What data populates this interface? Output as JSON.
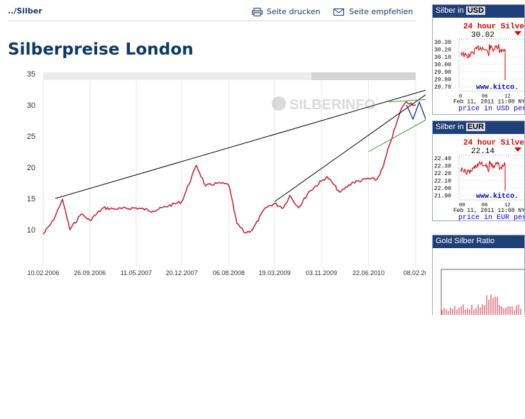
{
  "breadcrumb": "../Silber",
  "toolbar": {
    "print_label": "Seite drucken",
    "recommend_label": "Seite empfehlen"
  },
  "page_title": "Silberpreise London",
  "watermark": "SILBERINFO",
  "chart_data": {
    "type": "line",
    "title": "",
    "xlabel": "",
    "ylabel": "",
    "ylim": [
      5,
      35
    ],
    "yticks": [
      10,
      15,
      20,
      25,
      30,
      35
    ],
    "xtick_labels": [
      "10.02.2006",
      "26.09.2006",
      "11.05.2007",
      "20.12.2007",
      "06.08.2008",
      "19.03.2009",
      "03.11.2009",
      "22.06.2010",
      "08.02.20"
    ],
    "series": [
      {
        "color": "#c8283c",
        "x": [
          "10.02.2006",
          "01.04.2006",
          "15.05.2006",
          "20.06.2006",
          "15.08.2006",
          "26.09.2006",
          "01.12.2006",
          "01.02.2007",
          "11.05.2007",
          "01.08.2007",
          "15.10.2007",
          "20.12.2007",
          "01.03.2008",
          "15.04.2008",
          "15.06.2008",
          "06.08.2008",
          "15.09.2008",
          "25.10.2008",
          "01.12.2008",
          "01.02.2009",
          "19.03.2009",
          "01.05.2009",
          "01.06.2009",
          "15.07.2009",
          "01.09.2009",
          "03.11.2009",
          "01.12.2009",
          "01.02.2010",
          "01.04.2010",
          "22.06.2010",
          "01.08.2010",
          "01.09.2010",
          "01.10.2010",
          "01.11.2010",
          "01.12.2010",
          "25.12.2010",
          "08.02.2011"
        ],
        "values": [
          9.3,
          11.5,
          14.9,
          10.0,
          12.5,
          11.5,
          13.5,
          13.3,
          13.5,
          13.0,
          13.8,
          14.5,
          20.3,
          17.0,
          17.5,
          17.2,
          11.0,
          9.5,
          10.0,
          13.5,
          14.2,
          13.5,
          15.5,
          13.5,
          16.0,
          17.8,
          18.5,
          16.0,
          17.5,
          18.2,
          18.0,
          20.0,
          23.5,
          26.5,
          29.5,
          30.5,
          30.0
        ]
      }
    ],
    "trendlines": [
      {
        "x": [
          "10.04.2006",
          "08.02.2011"
        ],
        "values": [
          15.0,
          33.0
        ],
        "color": "#000000"
      },
      {
        "x": [
          "19.03.2009",
          "08.02.2011"
        ],
        "values": [
          14.5,
          33.5
        ],
        "color": "#000000"
      },
      {
        "x": [
          "22.06.2010",
          "08.02.2011"
        ],
        "values": [
          22.5,
          29.0
        ],
        "color": "#2aa02a"
      },
      {
        "x": [
          "01.10.2010",
          "08.02.2011"
        ],
        "values": [
          30.5,
          30.8
        ],
        "color": "#2aa02a"
      }
    ],
    "projection": {
      "x": [
        "25.12.2010",
        "08.02.2011"
      ],
      "values": [
        30.0,
        30.5
      ],
      "color": "#1a2f8a",
      "label": "zigzag"
    },
    "grid": true,
    "legend": "none"
  },
  "widgets": {
    "usd": {
      "head_prefix": "Silber in",
      "currency": "USD",
      "title": "24 hour Silve",
      "price": "30.02",
      "yticks": [
        "30.30",
        "30.20",
        "30.10",
        "30.00",
        "29.90",
        "29.80",
        "29.70"
      ],
      "xticks": [
        "0",
        "06",
        "12"
      ],
      "brand": "www.kitco.",
      "timestamp": "Feb 11, 2011 11:08 NY",
      "footer": "price in USD per"
    },
    "eur": {
      "head_prefix": "Silber in",
      "currency": "EUR",
      "title": "24 hour Silve",
      "price": "22.14",
      "yticks": [
        "22.40",
        "22.30",
        "22.20",
        "22.10",
        "22.00",
        "21.90"
      ],
      "xticks": [
        "00",
        "06",
        "12"
      ],
      "brand": "www.kitco.",
      "timestamp": "Feb 11, 2011 11:08 NY",
      "footer": "price in EUR per"
    },
    "ratio": {
      "title": "Gold Silber Ratio"
    }
  },
  "colors": {
    "title": "#0b3a66",
    "widget_header": "#1f3f78",
    "series": "#c8283c",
    "kitco_red": "#e00000",
    "kitco_blue": "#0000cc"
  }
}
